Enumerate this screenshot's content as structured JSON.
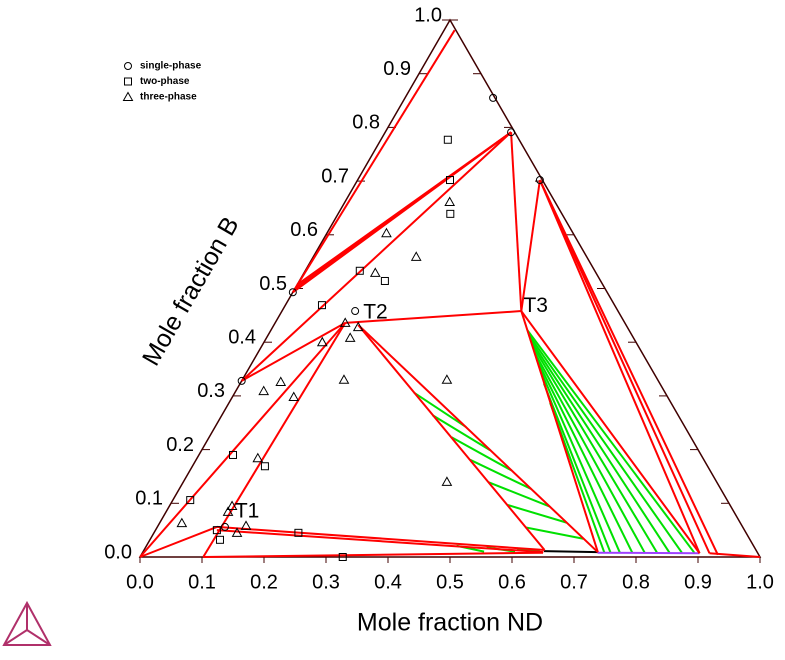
{
  "chart_data": {
    "type": "ternary",
    "xlabel": "Mole fraction ND",
    "ylabel": "Mole fraction B",
    "ticks": [
      {
        "value": 0,
        "label": "0.0"
      },
      0.1,
      0.2,
      0.3,
      0.4,
      0.5,
      0.6,
      0.7,
      0.8,
      0.9,
      {
        "value": 1,
        "label": "1.0"
      }
    ],
    "legend": "upper left",
    "series": [
      {
        "name": "single-phase",
        "marker": "circle",
        "color": "#000000",
        "points": [
          [
            0,
            0.493
          ],
          [
            0,
            0.328
          ],
          [
            0.142,
            0.855
          ],
          [
            0.203,
            0.791
          ],
          [
            0.294,
            0.702
          ],
          [
            0.109,
            0.056
          ],
          [
            0.118,
            0.458
          ]
        ]
      },
      {
        "name": "two-phase",
        "marker": "square",
        "color": "#000000",
        "points": [
          [
            0.108,
            0.777
          ],
          [
            0.149,
            0.702
          ],
          [
            0.181,
            0.639
          ],
          [
            0.088,
            0.533
          ],
          [
            0.138,
            0.514
          ],
          [
            0.059,
            0.469
          ],
          [
            0.055,
            0.19
          ],
          [
            0.117,
            0.169
          ],
          [
            0.028,
            0.106
          ],
          [
            0.099,
            0.05
          ],
          [
            0.113,
            0.032
          ],
          [
            0.233,
            0.045
          ],
          [
            0.327,
            0
          ]
        ]
      },
      {
        "name": "three-phase",
        "marker": "triangle",
        "color": "#000000",
        "points": [
          [
            0.096,
            0.603
          ],
          [
            0.166,
            0.559
          ],
          [
            0.115,
            0.529
          ],
          [
            0.169,
            0.661
          ],
          [
            0.113,
            0.436
          ],
          [
            0.094,
            0.4
          ],
          [
            0.135,
            0.408
          ],
          [
            0.138,
            0.428
          ],
          [
            0.164,
            0.33
          ],
          [
            0.33,
            0.33
          ],
          [
            0.045,
            0.309
          ],
          [
            0.064,
            0.326
          ],
          [
            0.099,
            0.298
          ],
          [
            0.098,
            0.184
          ],
          [
            0.425,
            0.14
          ],
          [
            0.101,
            0.095
          ],
          [
            0.1,
            0.084
          ],
          [
            0.142,
            0.058
          ],
          [
            0.134,
            0.045
          ],
          [
            0.036,
            0.063
          ]
        ]
      }
    ],
    "lines": [
      {
        "color": "#00e000",
        "segments": [
          [
            0.414,
            0.422,
            0.89,
            0.008
          ],
          [
            0.421,
            0.413,
            0.87,
            0.008
          ],
          [
            0.428,
            0.404,
            0.85,
            0.008
          ],
          [
            0.435,
            0.395,
            0.83,
            0.008
          ],
          [
            0.445,
            0.382,
            0.81,
            0.008
          ],
          [
            0.456,
            0.368,
            0.79,
            0.008
          ],
          [
            0.47,
            0.35,
            0.77,
            0.008
          ],
          [
            0.49,
            0.323,
            0.755,
            0.008
          ],
          [
            0.518,
            0.287,
            0.745,
            0.008
          ],
          [
            0.289,
            0.306,
            0.405,
            0.242
          ],
          [
            0.34,
            0.264,
            0.465,
            0.199
          ],
          [
            0.391,
            0.223,
            0.519,
            0.161
          ],
          [
            0.442,
            0.181,
            0.567,
            0.127
          ],
          [
            0.493,
            0.139,
            0.614,
            0.094
          ],
          [
            0.544,
            0.097,
            0.656,
            0.064
          ],
          [
            0.595,
            0.055,
            0.698,
            0.034
          ],
          [
            0.5,
            0.021,
            0.55,
            0.01
          ],
          [
            0.55,
            0.018,
            0.6,
            0.01
          ],
          [
            0.6,
            0.016,
            0.64,
            0.01
          ]
        ]
      },
      {
        "color": "#000000",
        "segments": [
          [
            0.646,
            0.011,
            0.734,
            0.009
          ]
        ]
      },
      {
        "color": "#a040ff",
        "segments": [
          [
            0.734,
            0.008,
            0.899,
            0.007
          ]
        ]
      },
      {
        "color": "#ff0000",
        "segments": [
          [
            0,
            0.493,
            0.017,
            0.981
          ],
          [
            0,
            0.493,
            0.203,
            0.791
          ],
          [
            0,
            0.5,
            0.203,
            0.791
          ],
          [
            0,
            0.507,
            0.203,
            0.791
          ],
          [
            0,
            0.328,
            0.203,
            0.791
          ],
          [
            0,
            0.328,
            0.113,
            0.436
          ],
          [
            0,
            0,
            0.113,
            0.436
          ],
          [
            0.102,
            0,
            0.113,
            0.436
          ],
          [
            0,
            0,
            0.096,
            0.056
          ],
          [
            0.113,
            0.436,
            0.386,
            0.458
          ],
          [
            0.386,
            0.458,
            0.203,
            0.791
          ],
          [
            0.386,
            0.458,
            0.294,
            0.702
          ],
          [
            0.386,
            0.458,
            0.734,
            0.009
          ],
          [
            0.386,
            0.458,
            0.899,
            0.007
          ],
          [
            0.136,
            0.432,
            0.734,
            0.009
          ],
          [
            0.136,
            0.432,
            0.646,
            0.013
          ],
          [
            0.294,
            0.702,
            0.915,
            0.007
          ],
          [
            0.294,
            0.702,
            0.899,
            0.007
          ],
          [
            0.294,
            0.702,
            0.93,
            0.004
          ],
          [
            0.096,
            0.056,
            0.646,
            0.013
          ],
          [
            0.099,
            0.05,
            0.646,
            0.009
          ],
          [
            0.102,
            0,
            0.646,
            0.008
          ],
          [
            0.915,
            0.007,
            1,
            0
          ]
        ]
      }
    ],
    "annotations": [
      {
        "text": "T1",
        "a": 0.111,
        "b": 0.084
      },
      {
        "text": "T2",
        "a": 0.133,
        "b": 0.454
      },
      {
        "text": "T3",
        "a": 0.385,
        "b": 0.467
      }
    ]
  }
}
